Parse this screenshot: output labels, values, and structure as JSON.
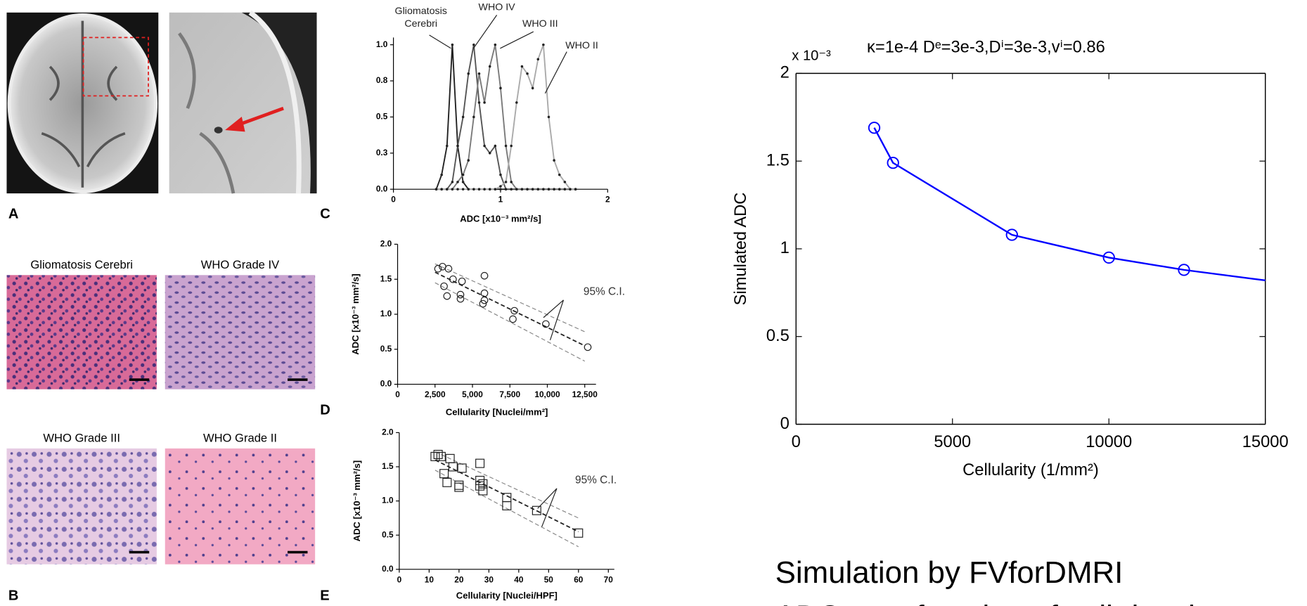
{
  "panels": {
    "a": "A",
    "b": "B",
    "c": "C",
    "d": "D",
    "e": "E"
  },
  "histology": [
    "Gliomatosis Cerebri",
    "WHO Grade IV",
    "WHO Grade III",
    "WHO Grade II"
  ],
  "caption": [
    "Simulation by FVforDMRI",
    "ADC as a function of cell density"
  ],
  "chart_data": [
    {
      "type": "line",
      "xlabel": "ADC [x10⁻³ mm²/s]",
      "x": [
        0.4,
        0.45,
        0.5,
        0.55,
        0.6,
        0.65,
        0.7,
        0.75,
        0.8,
        0.85,
        0.9,
        0.95,
        1.0,
        1.05,
        1.1,
        1.15,
        1.2,
        1.25,
        1.3,
        1.35,
        1.4,
        1.45,
        1.5,
        1.55,
        1.6,
        1.65,
        1.7
      ],
      "xlim": [
        0,
        2
      ],
      "xticks": [
        0,
        1,
        2
      ],
      "ylim": [
        0,
        1.05
      ],
      "yticks": [
        {
          "value": 0,
          "label": "0.0"
        },
        {
          "value": 0.25,
          "label": "0.3"
        },
        0.5,
        {
          "value": 0.75,
          "label": "0.8"
        },
        {
          "value": 1,
          "label": "1.0"
        }
      ],
      "series": [
        {
          "name": "Gliomatosis Cerebri",
          "color": "#222222",
          "marker": "dot",
          "values": [
            0,
            0.1,
            0.3,
            1,
            0.3,
            0.05,
            0,
            0,
            0,
            0,
            0,
            0,
            0,
            0,
            0,
            0,
            0,
            0,
            0,
            0,
            0,
            0,
            0,
            0,
            0,
            0,
            0
          ]
        },
        {
          "name": "WHO IV",
          "color": "#555555",
          "marker": "dot",
          "values": [
            0,
            0,
            0,
            0.05,
            0.3,
            0.5,
            0.8,
            1,
            0.6,
            0.3,
            0.25,
            0.3,
            0.1,
            0,
            0,
            0,
            0,
            0,
            0,
            0,
            0,
            0,
            0,
            0,
            0,
            0,
            0
          ]
        },
        {
          "name": "WHO III",
          "color": "#7a7a7a",
          "marker": "dot",
          "values": [
            0,
            0,
            0,
            0,
            0.05,
            0.1,
            0.2,
            0.5,
            0.8,
            0.6,
            0.85,
            1,
            0.7,
            0.3,
            0.05,
            0,
            0,
            0,
            0,
            0,
            0,
            0,
            0,
            0,
            0,
            0,
            0
          ]
        },
        {
          "name": "WHO II",
          "color": "#aaaaaa",
          "marker": "dot",
          "values": [
            0,
            0,
            0,
            0,
            0,
            0,
            0,
            0,
            0,
            0,
            0,
            0,
            0.02,
            0.05,
            0.3,
            0.6,
            0.85,
            0.8,
            0.7,
            0.9,
            1,
            0.5,
            0.2,
            0.1,
            0.05,
            0,
            0
          ]
        }
      ]
    },
    {
      "type": "scatter",
      "xlabel": "Cellularity [Nuclei/mm²]",
      "ylabel": "ADC [x10⁻³ mm²/s]",
      "marker": "circle",
      "x": [
        2700,
        3000,
        3400,
        3100,
        3300,
        3700,
        4300,
        4200,
        4200,
        5800,
        5800,
        5800,
        5700,
        7800,
        7700,
        9900,
        12700
      ],
      "values": [
        1.65,
        1.68,
        1.65,
        1.4,
        1.26,
        1.5,
        1.47,
        1.22,
        1.28,
        1.55,
        1.3,
        1.2,
        1.15,
        1.05,
        0.93,
        0.86,
        0.53
      ],
      "xlim": [
        0,
        13250
      ],
      "xticks": [
        0,
        {
          "value": 2500,
          "label": "2,500"
        },
        {
          "value": 5000,
          "label": "5,000"
        },
        {
          "value": 7500,
          "label": "7,500"
        },
        {
          "value": 10000,
          "label": "10,000"
        },
        {
          "value": 12500,
          "label": "12,500"
        }
      ],
      "ylim": [
        0,
        2
      ],
      "yticks": [
        {
          "value": 0,
          "label": "0.0"
        },
        0.5,
        {
          "value": 1,
          "label": "1.0"
        },
        1.5,
        {
          "value": 2,
          "label": "2.0"
        }
      ],
      "fit": {
        "x": [
          2500,
          12500
        ],
        "values": [
          1.6,
          0.55
        ]
      },
      "ci": [
        {
          "x": [
            2500,
            12500
          ],
          "values": [
            1.72,
            0.75
          ]
        },
        {
          "x": [
            2500,
            12500
          ],
          "values": [
            1.45,
            0.33
          ]
        }
      ],
      "annotation": "95% C.I."
    },
    {
      "type": "scatter",
      "xlabel": "Cellularity [Nuclei/HPF]",
      "ylabel": "ADC [x10⁻³ mm²/s]",
      "marker": "square",
      "x": [
        12,
        13,
        14,
        15,
        16,
        17,
        18,
        20,
        20,
        21,
        27,
        27,
        27,
        28,
        28,
        36,
        36,
        46,
        60
      ],
      "values": [
        1.65,
        1.68,
        1.65,
        1.4,
        1.27,
        1.62,
        1.5,
        1.23,
        1.2,
        1.48,
        1.55,
        1.3,
        1.22,
        1.15,
        1.25,
        1.05,
        0.93,
        0.86,
        0.53
      ],
      "xlim": [
        0,
        72
      ],
      "xticks": [
        0,
        10,
        20,
        30,
        40,
        50,
        60,
        70
      ],
      "ylim": [
        0,
        2
      ],
      "yticks": [
        {
          "value": 0,
          "label": "0.0"
        },
        0.5,
        {
          "value": 1,
          "label": "1.0"
        },
        1.5,
        {
          "value": 2,
          "label": "2.0"
        }
      ],
      "fit": {
        "x": [
          12,
          60
        ],
        "values": [
          1.6,
          0.55
        ]
      },
      "ci": [
        {
          "x": [
            12,
            60
          ],
          "values": [
            1.72,
            0.75
          ]
        },
        {
          "x": [
            12,
            60
          ],
          "values": [
            1.45,
            0.33
          ]
        }
      ],
      "annotation": "95% C.I."
    },
    {
      "type": "line",
      "title": "κ=1e-4 Dᵉ=3e-3,Dⁱ=3e-3,vⁱ=0.86",
      "xlabel": "Cellularity (1/mm²)",
      "ylabel": "Simulated ADC",
      "y_multiplier": "x 10⁻³",
      "xlim": [
        0,
        15000
      ],
      "xticks": [
        0,
        5000,
        10000,
        15000
      ],
      "ylim": [
        0,
        2
      ],
      "yticks": [
        0,
        0.5,
        1,
        1.5,
        2
      ],
      "series": [
        {
          "color": "#0000ff",
          "x": [
            2500,
            3100,
            6900,
            10000,
            12400,
            15000
          ],
          "values": [
            1.69,
            1.49,
            1.08,
            0.95,
            0.88,
            0.82
          ]
        },
        {
          "color": "#0000ff",
          "line": false,
          "marker": "circle",
          "x": [
            2500,
            3100,
            6900,
            10000,
            12400
          ],
          "values": [
            1.69,
            1.49,
            1.08,
            0.95,
            0.88
          ]
        }
      ]
    }
  ]
}
